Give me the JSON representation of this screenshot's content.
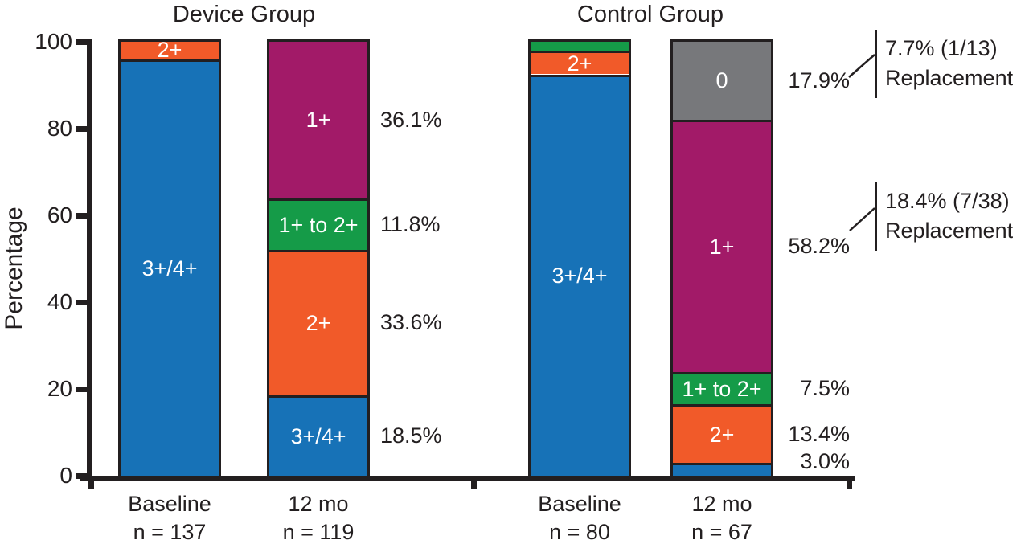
{
  "chart_data": {
    "type": "bar",
    "stacked": true,
    "title": "",
    "ylabel": "Percentage",
    "ylim": [
      0,
      100
    ],
    "yticks": [
      0,
      20,
      40,
      60,
      80,
      100
    ],
    "grid": false,
    "legend": "none (labels drawn inside segments)",
    "colors": {
      "blue": "#1772b7",
      "orange": "#f15a29",
      "green": "#159b48",
      "purple": "#a21a68",
      "gray": "#77787b",
      "ink": "#231f20"
    },
    "groups": [
      {
        "name": "Device Group",
        "bars": [
          {
            "x_label": "Baseline",
            "n_label": "n = 137",
            "segments": [
              {
                "name": "3+/4+",
                "value": 96,
                "color": "blue",
                "bar_label": "3+/4+",
                "side_label": null
              },
              {
                "name": "2+",
                "value": 4,
                "color": "orange",
                "bar_label": "2+",
                "side_label": null
              }
            ]
          },
          {
            "x_label": "12 mo",
            "n_label": "n = 119",
            "segments": [
              {
                "name": "3+/4+",
                "value": 18.5,
                "color": "blue",
                "bar_label": "3+/4+",
                "side_label": "18.5%"
              },
              {
                "name": "2+",
                "value": 33.6,
                "color": "orange",
                "bar_label": "2+",
                "side_label": "33.6%"
              },
              {
                "name": "1+ to 2+",
                "value": 11.8,
                "color": "green",
                "bar_label": "1+ to 2+",
                "side_label": "11.8%"
              },
              {
                "name": "1+",
                "value": 36.1,
                "color": "purple",
                "bar_label": "1+",
                "side_label": "36.1%"
              }
            ]
          }
        ]
      },
      {
        "name": "Control Group",
        "bars": [
          {
            "x_label": "Baseline",
            "n_label": "n = 80",
            "segments": [
              {
                "name": "3+/4+",
                "value": 92.5,
                "color": "blue",
                "bar_label": "3+/4+",
                "side_label": null
              },
              {
                "name": "2+",
                "value": 5.5,
                "color": "orange",
                "bar_label": "2+",
                "side_label": null
              },
              {
                "name": "1+ to 2+",
                "value": 2,
                "color": "green",
                "bar_label": null,
                "side_label": null
              }
            ]
          },
          {
            "x_label": "12 mo",
            "n_label": "n = 67",
            "segments": [
              {
                "name": "3+/4+",
                "value": 3,
                "color": "blue",
                "bar_label": null,
                "side_label": "3.0%"
              },
              {
                "name": "2+",
                "value": 13.4,
                "color": "orange",
                "bar_label": "2+",
                "side_label": "13.4%"
              },
              {
                "name": "1+ to 2+",
                "value": 7.5,
                "color": "green",
                "bar_label": "1+ to 2+",
                "side_label": "7.5%"
              },
              {
                "name": "1+",
                "value": 58.2,
                "color": "purple",
                "bar_label": "1+",
                "side_label": "58.2%"
              },
              {
                "name": "0",
                "value": 17.9,
                "color": "gray",
                "bar_label": "0",
                "side_label": "17.9%"
              }
            ]
          }
        ]
      }
    ],
    "annotations": [
      {
        "line1": "7.7% (1/13)",
        "line2": "Replacement",
        "connects_from": "17.9%"
      },
      {
        "line1": "18.4% (7/38)",
        "line2": "Replacement",
        "connects_from": "58.2%"
      }
    ]
  }
}
